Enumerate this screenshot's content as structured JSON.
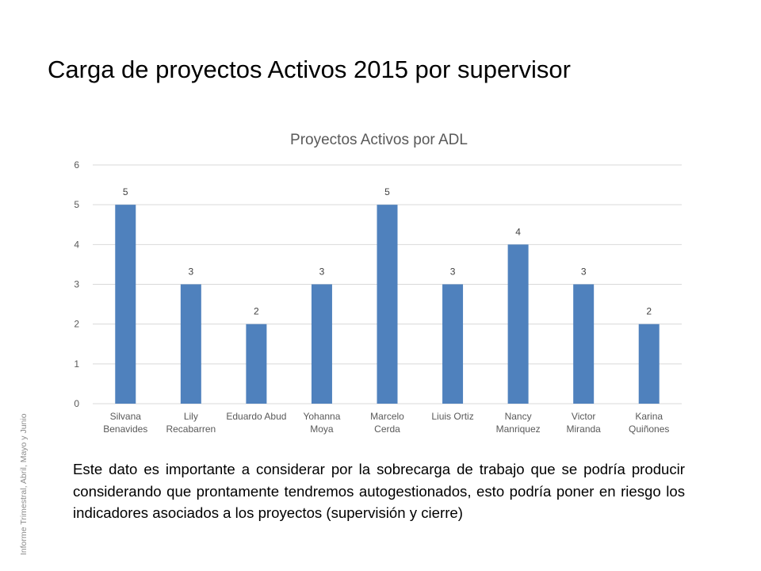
{
  "slide": {
    "title": "Carga de proyectos Activos 2015 por supervisor",
    "side_note": "Informe Trimestral, Abril, Mayo y Junio",
    "body": "Este dato es importante a considerar por la sobrecarga de trabajo que se podría producir considerando que prontamente tendremos autogestionados, esto podría poner en riesgo los indicadores asociados a los proyectos (supervisión y cierre)"
  },
  "chart_data": {
    "type": "bar",
    "title": "Proyectos Activos por ADL",
    "xlabel": "",
    "ylabel": "",
    "categories": [
      [
        "Silvana",
        "Benavides"
      ],
      [
        "Lily",
        "Recabarren"
      ],
      [
        "Eduardo Abud"
      ],
      [
        "Yohanna",
        "Moya"
      ],
      [
        "Marcelo",
        "Cerda"
      ],
      [
        "Liuis Ortiz"
      ],
      [
        "Nancy",
        "Manriquez"
      ],
      [
        "Victor",
        "Miranda"
      ],
      [
        "Karina",
        "Quiñones"
      ]
    ],
    "values": [
      5,
      3,
      2,
      3,
      5,
      3,
      4,
      3,
      2
    ],
    "ylim": [
      0,
      6
    ],
    "yticks": [
      0,
      1,
      2,
      3,
      4,
      5,
      6
    ],
    "grid": true,
    "legend": "none",
    "data_labels": true,
    "colors": {
      "bar": "#4f81bd",
      "grid": "#d9d9d9",
      "tick_text": "#595959",
      "title_text": "#595959",
      "label_text": "#404040"
    }
  }
}
